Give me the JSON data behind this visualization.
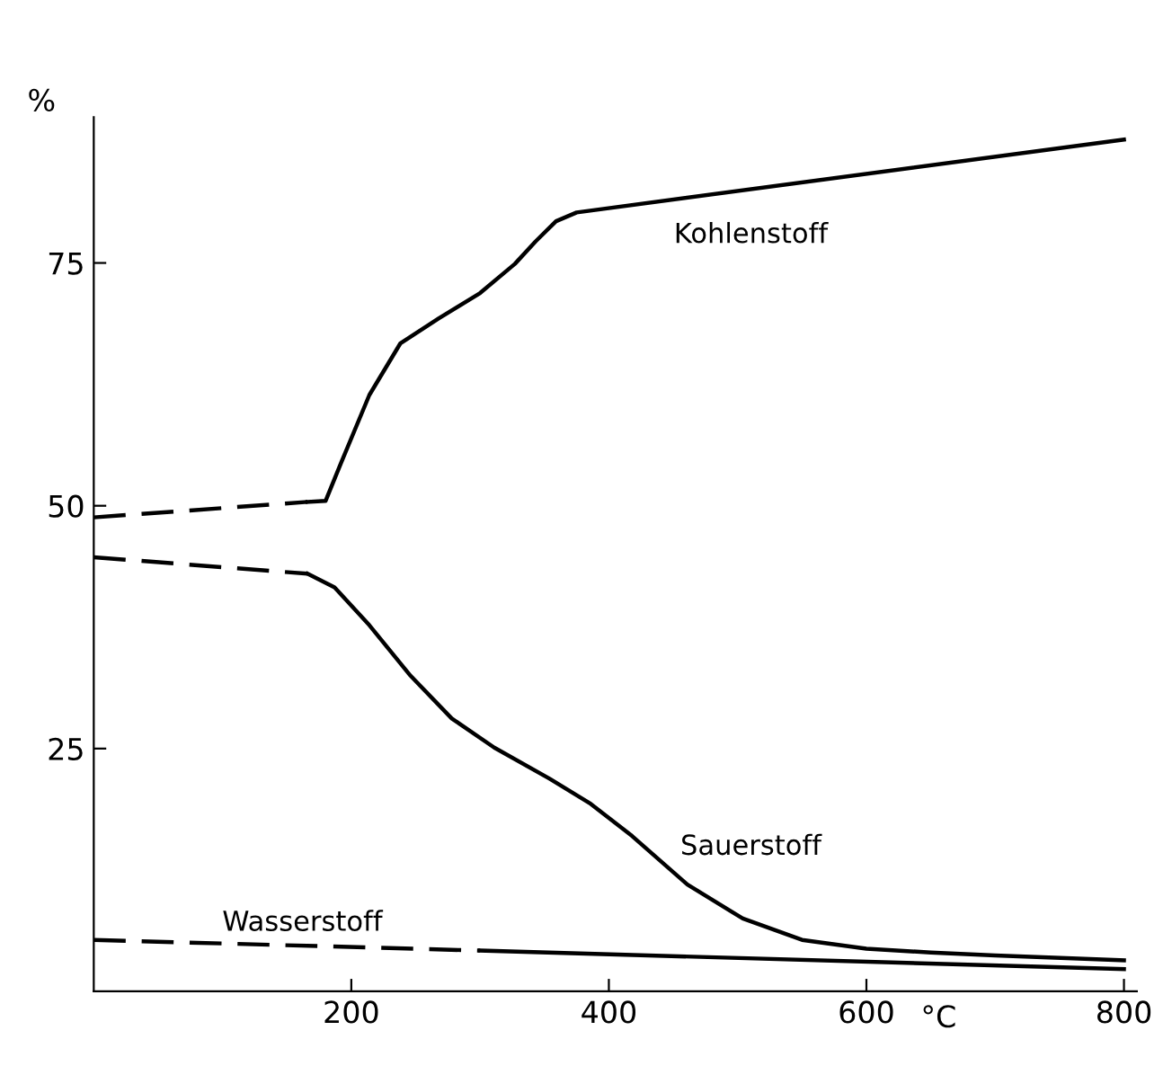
{
  "chart_data": {
    "type": "line",
    "xlabel": "°C",
    "ylabel": "%",
    "xlim": [
      0,
      810
    ],
    "ylim": [
      0,
      90
    ],
    "xticks": [
      200,
      400,
      600,
      800
    ],
    "yticks": [
      25,
      50,
      75
    ],
    "grid": false,
    "legend": false,
    "marker": "none",
    "series": [
      {
        "color": "#000000",
        "line_style": "dashed",
        "x": [
          0,
          166
        ],
        "values": [
          48.8,
          50.4
        ]
      },
      {
        "color": "#000000",
        "line_style": "solid",
        "x": [
          166,
          180,
          192,
          214,
          238,
          268,
          300,
          327,
          343,
          359,
          375,
          800
        ],
        "values": [
          50.4,
          50.5,
          54.4,
          61.4,
          66.7,
          69.3,
          71.9,
          74.9,
          77.2,
          79.3,
          80.2,
          87.7
        ]
      },
      {
        "color": "#000000",
        "line_style": "dashed",
        "x": [
          0,
          166
        ],
        "values": [
          44.7,
          43
        ]
      },
      {
        "color": "#000000",
        "line_style": "solid",
        "x": [
          166,
          187,
          214,
          246,
          278,
          311,
          354,
          386,
          418,
          461,
          504,
          550,
          600,
          650,
          700,
          800
        ],
        "values": [
          43,
          41.6,
          37.7,
          32.5,
          28.1,
          25.1,
          21.9,
          19.3,
          16,
          11,
          7.5,
          5.3,
          4.4,
          4,
          3.7,
          3.2
        ]
      },
      {
        "color": "#000000",
        "line_style": "dashed",
        "x": [
          0,
          300
        ],
        "values": [
          5.3,
          4.2
        ]
      },
      {
        "color": "#000000",
        "line_style": "solid",
        "x": [
          300,
          800
        ],
        "values": [
          4.2,
          2.3
        ]
      }
    ],
    "annotations": [
      "Kohlenstoff",
      "Sauerstoff",
      "Wasserstoff"
    ]
  }
}
